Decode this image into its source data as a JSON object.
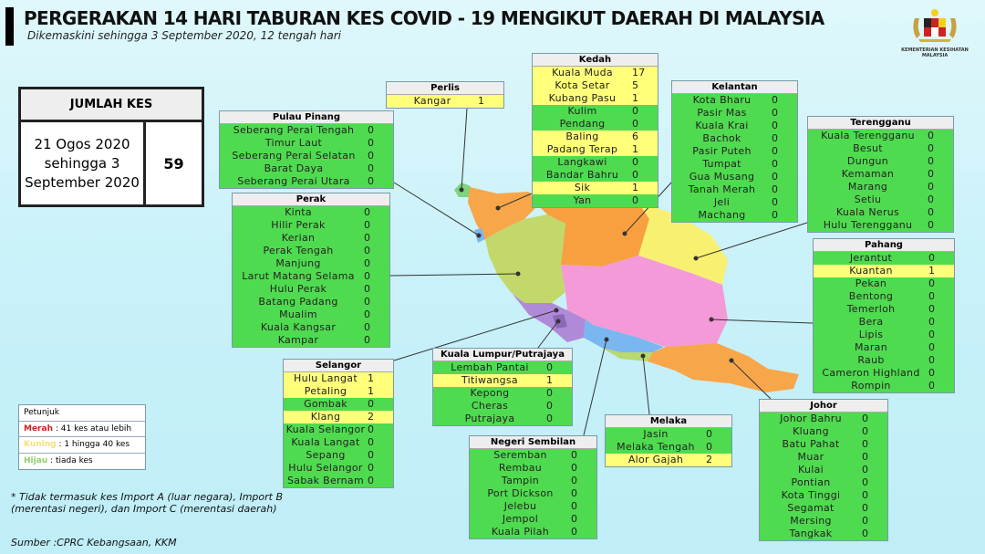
{
  "header": {
    "title": "PERGERAKAN 14 HARI TABURAN KES COVID - 19 MENGIKUT DAERAH DI MALAYSIA",
    "subtitle": "Dikemaskini sehingga 3 September 2020, 12 tengah hari",
    "logo_text": "KEMENTERIAN KESIHATAN MALAYSIA"
  },
  "total": {
    "heading": "JUMLAH KES",
    "period": "21 Ogos 2020 sehingga 3 September 2020",
    "value": "59"
  },
  "colors": {
    "green": "#4fdb4f",
    "yellow": "#ffff7a",
    "red": "#ee3333"
  },
  "legend": {
    "title": "Petunjuk",
    "items": [
      {
        "label": "Merah",
        "desc": ": 41 kes atau lebih",
        "color": "#cc2222"
      },
      {
        "label": "Kuning",
        "desc": ": 1 hingga 40 kes",
        "color": "#f5e07a"
      },
      {
        "label": "Hijau",
        "desc": ": tiada kes",
        "color": "#8fcf6f"
      }
    ]
  },
  "note": "* Tidak termasuk kes Import A (luar negara), Import B (merentasi negeri),  dan Import C (merentasi daerah)",
  "source": "Sumber :CPRC Kebangsaan,  KKM",
  "states": [
    {
      "key": "perlis",
      "name": "Perlis",
      "rows": [
        [
          "Kangar",
          "1"
        ]
      ]
    },
    {
      "key": "kedah",
      "name": "Kedah",
      "rows": [
        [
          "Kuala Muda",
          "17"
        ],
        [
          "Kota Setar",
          "5"
        ],
        [
          "Kubang Pasu",
          "1"
        ],
        [
          "Kulim",
          "0"
        ],
        [
          "Pendang",
          "0"
        ],
        [
          "Baling",
          "6"
        ],
        [
          "Padang Terap",
          "1"
        ],
        [
          "Langkawi",
          "0"
        ],
        [
          "Bandar Bahru",
          "0"
        ],
        [
          "Sik",
          "1"
        ],
        [
          "Yan",
          "0"
        ]
      ]
    },
    {
      "key": "pulau-pinang",
      "name": "Pulau Pinang",
      "rows": [
        [
          "Seberang Perai Tengah",
          "0"
        ],
        [
          "Timur Laut",
          "0"
        ],
        [
          "Seberang Perai Selatan",
          "0"
        ],
        [
          "Barat Daya",
          "0"
        ],
        [
          "Seberang Perai Utara",
          "0"
        ]
      ]
    },
    {
      "key": "kelantan",
      "name": "Kelantan",
      "rows": [
        [
          "Kota Bharu",
          "0"
        ],
        [
          "Pasir Mas",
          "0"
        ],
        [
          "Kuala Krai",
          "0"
        ],
        [
          "Bachok",
          "0"
        ],
        [
          "Pasir Puteh",
          "0"
        ],
        [
          "Tumpat",
          "0"
        ],
        [
          "Gua Musang",
          "0"
        ],
        [
          "Tanah Merah",
          "0"
        ],
        [
          "Jeli",
          "0"
        ],
        [
          "Machang",
          "0"
        ]
      ]
    },
    {
      "key": "terengganu",
      "name": "Terengganu",
      "rows": [
        [
          "Kuala Terengganu",
          "0"
        ],
        [
          "Besut",
          "0"
        ],
        [
          "Dungun",
          "0"
        ],
        [
          "Kemaman",
          "0"
        ],
        [
          "Marang",
          "0"
        ],
        [
          "Setiu",
          "0"
        ],
        [
          "Kuala Nerus",
          "0"
        ],
        [
          "Hulu Terengganu",
          "0"
        ]
      ]
    },
    {
      "key": "perak",
      "name": "Perak",
      "rows": [
        [
          "Kinta",
          "0"
        ],
        [
          "Hilir Perak",
          "0"
        ],
        [
          "Kerian",
          "0"
        ],
        [
          "Perak Tengah",
          "0"
        ],
        [
          "Manjung",
          "0"
        ],
        [
          "Larut Matang Selama",
          "0"
        ],
        [
          "Hulu Perak",
          "0"
        ],
        [
          "Batang Padang",
          "0"
        ],
        [
          "Mualim",
          "0"
        ],
        [
          "Kuala Kangsar",
          "0"
        ],
        [
          "Kampar",
          "0"
        ]
      ]
    },
    {
      "key": "pahang",
      "name": "Pahang",
      "rows": [
        [
          "Jerantut",
          "0"
        ],
        [
          "Kuantan",
          "1"
        ],
        [
          "Pekan",
          "0"
        ],
        [
          "Bentong",
          "0"
        ],
        [
          "Temerloh",
          "0"
        ],
        [
          "Bera",
          "0"
        ],
        [
          "Lipis",
          "0"
        ],
        [
          "Maran",
          "0"
        ],
        [
          "Raub",
          "0"
        ],
        [
          "Cameron Highland",
          "0"
        ],
        [
          "Rompin",
          "0"
        ]
      ]
    },
    {
      "key": "selangor",
      "name": "Selangor",
      "rows": [
        [
          "Hulu Langat",
          "1"
        ],
        [
          "Petaling",
          "1"
        ],
        [
          "Gombak",
          "0"
        ],
        [
          "Klang",
          "2"
        ],
        [
          "Kuala Selangor",
          "0"
        ],
        [
          "Kuala Langat",
          "0"
        ],
        [
          "Sepang",
          "0"
        ],
        [
          "Hulu Selangor",
          "0"
        ],
        [
          "Sabak Bernam",
          "0"
        ]
      ]
    },
    {
      "key": "kl-putrajaya",
      "name": "Kuala Lumpur/Putrajaya",
      "rows": [
        [
          "Lembah Pantai",
          "0"
        ],
        [
          "Titiwangsa",
          "1"
        ],
        [
          "Kepong",
          "0"
        ],
        [
          "Cheras",
          "0"
        ],
        [
          "Putrajaya",
          "0"
        ]
      ]
    },
    {
      "key": "negeri-sembilan",
      "name": "Negeri Sembilan",
      "rows": [
        [
          "Seremban",
          "0"
        ],
        [
          "Rembau",
          "0"
        ],
        [
          "Tampin",
          "0"
        ],
        [
          "Port Dickson",
          "0"
        ],
        [
          "Jelebu",
          "0"
        ],
        [
          "Jempol",
          "0"
        ],
        [
          "Kuala Pilah",
          "0"
        ]
      ]
    },
    {
      "key": "melaka",
      "name": "Melaka",
      "rows": [
        [
          "Jasin",
          "0"
        ],
        [
          "Melaka Tengah",
          "0"
        ],
        [
          "Alor Gajah",
          "2"
        ]
      ]
    },
    {
      "key": "johor",
      "name": "Johor",
      "rows": [
        [
          "Johor Bahru",
          "0"
        ],
        [
          "Kluang",
          "0"
        ],
        [
          "Batu Pahat",
          "0"
        ],
        [
          "Muar",
          "0"
        ],
        [
          "Kulai",
          "0"
        ],
        [
          "Pontian",
          "0"
        ],
        [
          "Kota Tinggi",
          "0"
        ],
        [
          "Segamat",
          "0"
        ],
        [
          "Mersing",
          "0"
        ],
        [
          "Tangkak",
          "0"
        ]
      ]
    }
  ]
}
